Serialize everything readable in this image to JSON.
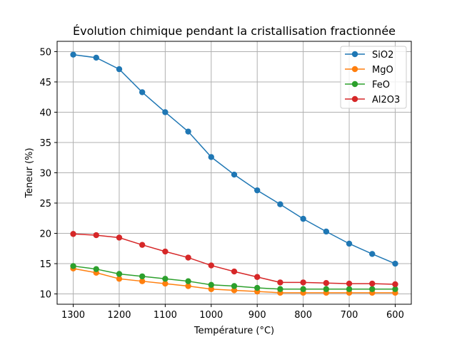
{
  "chart_data": {
    "type": "line",
    "title": "Évolution chimique pendant la cristallisation fractionnée",
    "xlabel": "Température (°C)",
    "ylabel": "Teneur (%)",
    "x": [
      1300,
      1250,
      1200,
      1150,
      1100,
      1050,
      1000,
      950,
      900,
      850,
      800,
      750,
      700,
      650,
      600
    ],
    "x_inverted": true,
    "xlim": [
      1335,
      565
    ],
    "ylim": [
      8.3,
      51.7
    ],
    "xticks": [
      1300,
      1200,
      1100,
      1000,
      900,
      800,
      700,
      600
    ],
    "yticks": [
      10,
      15,
      20,
      25,
      30,
      35,
      40,
      45,
      50
    ],
    "grid": true,
    "legend_position": "top-right",
    "series": [
      {
        "name": "SiO2",
        "color": "#1f77b4",
        "values": [
          49.5,
          49.0,
          47.1,
          43.3,
          40.0,
          36.8,
          32.6,
          29.7,
          27.1,
          24.8,
          22.4,
          20.3,
          18.3,
          16.6,
          15.0
        ]
      },
      {
        "name": "MgO",
        "color": "#ff7f0e",
        "values": [
          14.2,
          13.5,
          12.5,
          12.1,
          11.7,
          11.3,
          10.8,
          10.6,
          10.4,
          10.2,
          10.2,
          10.2,
          10.2,
          10.2,
          10.2
        ]
      },
      {
        "name": "FeO",
        "color": "#2ca02c",
        "values": [
          14.6,
          14.1,
          13.3,
          12.9,
          12.5,
          12.1,
          11.5,
          11.3,
          11.0,
          10.8,
          10.8,
          10.8,
          10.8,
          10.8,
          10.8
        ]
      },
      {
        "name": "Al2O3",
        "color": "#d62728",
        "values": [
          19.9,
          19.7,
          19.3,
          18.1,
          17.0,
          16.0,
          14.7,
          13.7,
          12.8,
          11.9,
          11.9,
          11.8,
          11.7,
          11.7,
          11.6
        ]
      }
    ]
  }
}
